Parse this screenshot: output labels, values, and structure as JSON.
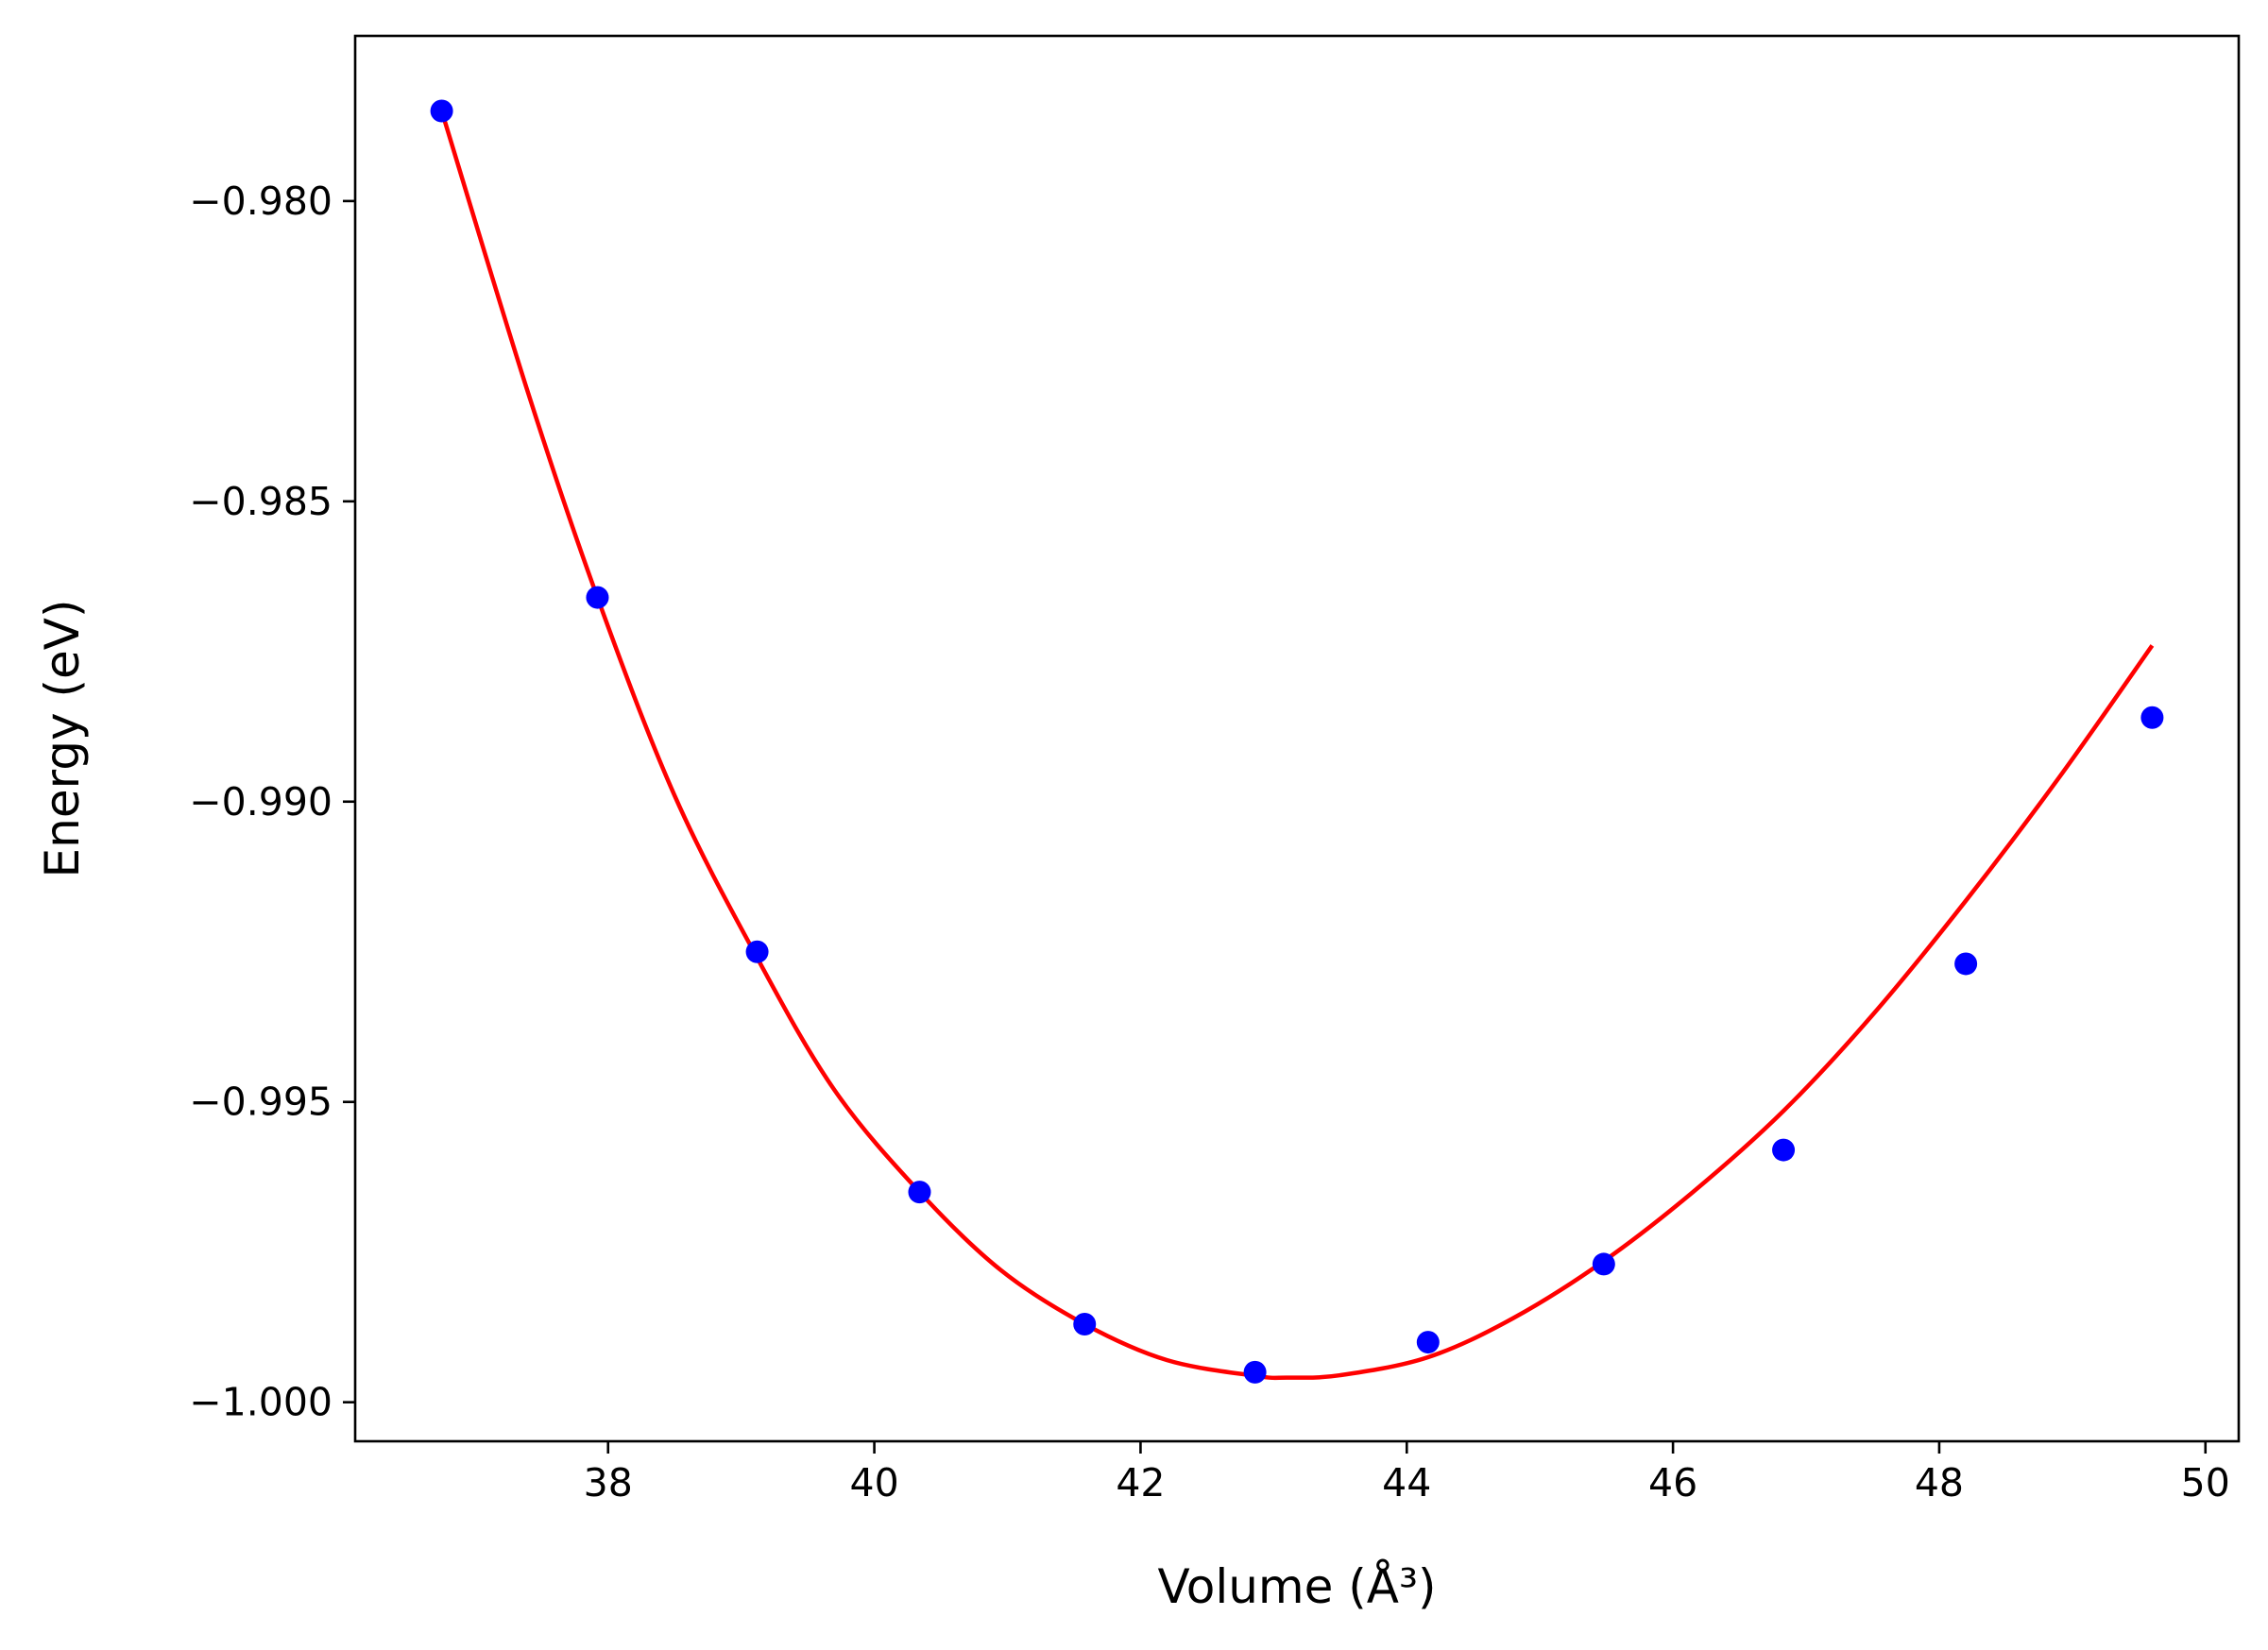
{
  "chart_data": {
    "type": "scatter",
    "title": "",
    "xlabel": "Volume (Å³)",
    "ylabel": "Energy (eV)",
    "xlim": [
      36.1,
      50.25
    ],
    "ylim": [
      -1.00065,
      -0.97725
    ],
    "xticks": [
      38,
      40,
      42,
      44,
      46,
      48,
      50
    ],
    "xtick_labels": [
      "38",
      "40",
      "42",
      "44",
      "46",
      "48",
      "50"
    ],
    "yticks": [
      -0.98,
      -0.985,
      -0.99,
      -0.995,
      -1.0
    ],
    "ytick_labels": [
      "−0.980",
      "−0.985",
      "−0.990",
      "−0.995",
      "−1.000"
    ],
    "grid": false,
    "series": [
      {
        "kind": "points",
        "color": "#0000ff",
        "x": [
          36.75,
          37.92,
          39.12,
          40.34,
          41.58,
          42.86,
          44.16,
          45.48,
          46.83,
          48.2,
          49.6
        ],
        "y": [
          -0.9785,
          -0.9866,
          -0.9925,
          -0.9965,
          -0.9987,
          -0.9995,
          -0.999,
          -0.9977,
          -0.9958,
          -0.9927,
          -0.9886
        ]
      },
      {
        "kind": "line",
        "color": "#ff0000",
        "x": [
          36.75,
          37.4,
          37.92,
          38.5,
          39.12,
          39.7,
          40.34,
          40.95,
          41.58,
          42.2,
          42.86,
          43.1,
          43.5,
          44.16,
          44.8,
          45.48,
          46.15,
          46.83,
          47.5,
          48.2,
          48.9,
          49.6
        ],
        "y": [
          -0.9785,
          -0.9832,
          -0.9866,
          -0.9899,
          -0.9926,
          -0.9948,
          -0.9965,
          -0.9978,
          -0.9987,
          -0.9993,
          -0.99956,
          -0.99959,
          -0.99955,
          -0.99925,
          -0.9986,
          -0.99765,
          -0.9965,
          -0.99515,
          -0.99355,
          -0.99165,
          -0.9896,
          -0.9874
        ]
      }
    ]
  }
}
